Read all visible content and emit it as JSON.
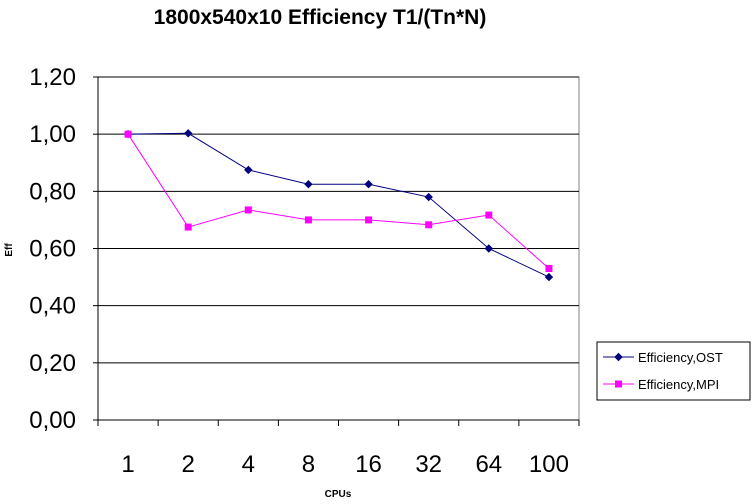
{
  "chart_data": {
    "type": "line",
    "title": "1800x540x10 Efficiency T1/(Tn*N)",
    "xlabel": "CPUs",
    "ylabel": "Eff",
    "categories": [
      "1",
      "2",
      "4",
      "8",
      "16",
      "32",
      "64",
      "100"
    ],
    "ylim": [
      0,
      1.2
    ],
    "yticks": [
      "0,00",
      "0,20",
      "0,40",
      "0,60",
      "0,80",
      "1,00",
      "1,20"
    ],
    "grid": true,
    "legend": "right",
    "series": [
      {
        "name": "Efficiency,OST",
        "color": "#000080",
        "marker": "diamond",
        "values": [
          1.0,
          1.003,
          0.875,
          0.825,
          0.825,
          0.78,
          0.6,
          0.5
        ]
      },
      {
        "name": "Efficiency,MPI",
        "color": "#ff00ff",
        "marker": "square",
        "values": [
          1.0,
          0.675,
          0.735,
          0.7,
          0.7,
          0.683,
          0.717,
          0.53
        ]
      }
    ]
  }
}
